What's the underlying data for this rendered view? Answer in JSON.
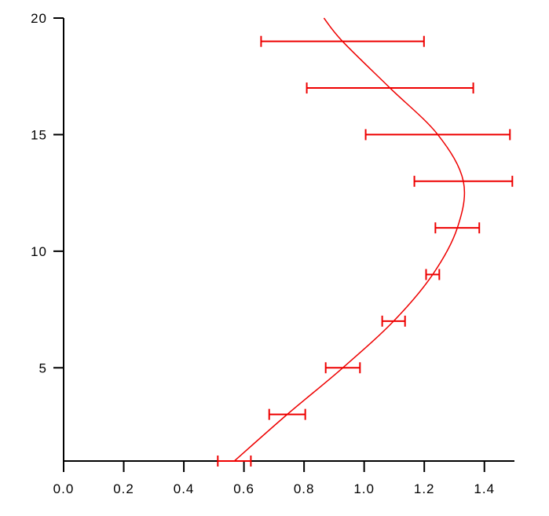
{
  "figure": {
    "background": "#ffffff",
    "axis_color": "#000000"
  },
  "chart_data": {
    "type": "line",
    "subtype": "vertical-profile-with-horizontal-error-bars",
    "title": "",
    "xlabel": "",
    "ylabel": "",
    "xlim": [
      0,
      1.5
    ],
    "ylim": [
      1,
      20
    ],
    "grid": false,
    "legend": false,
    "x_ticks": [
      {
        "value": 0.0,
        "label": "0.0"
      },
      {
        "value": 0.2,
        "label": "0.2"
      },
      {
        "value": 0.4,
        "label": "0.4"
      },
      {
        "value": 0.6,
        "label": "0.6"
      },
      {
        "value": 0.8,
        "label": "0.8"
      },
      {
        "value": 1.0,
        "label": "1.0"
      },
      {
        "value": 1.2,
        "label": "1.2"
      },
      {
        "value": 1.4,
        "label": "1.4"
      }
    ],
    "y_ticks": [
      {
        "value": 5,
        "label": "5"
      },
      {
        "value": 10,
        "label": "10"
      },
      {
        "value": 15,
        "label": "15"
      },
      {
        "value": 20,
        "label": "20"
      }
    ],
    "series": [
      {
        "color": "#ee0000",
        "points": [
          {
            "y": 1,
            "x": 0.568,
            "xerr": 0.055
          },
          {
            "y": 3,
            "x": 0.744,
            "xerr": 0.06
          },
          {
            "y": 5,
            "x": 0.929,
            "xerr": 0.057
          },
          {
            "y": 7,
            "x": 1.098,
            "xerr": 0.038
          },
          {
            "y": 9,
            "x": 1.228,
            "xerr": 0.022
          },
          {
            "y": 11,
            "x": 1.31,
            "xerr": 0.073
          },
          {
            "y": 13,
            "x": 1.33,
            "xerr": 0.163
          },
          {
            "y": 15,
            "x": 1.245,
            "xerr": 0.24
          },
          {
            "y": 17,
            "x": 1.086,
            "xerr": 0.277
          },
          {
            "y": 19,
            "x": 0.928,
            "xerr": 0.271
          }
        ],
        "curve_end_point": {
          "y": 20,
          "x": 0.866
        }
      }
    ]
  }
}
